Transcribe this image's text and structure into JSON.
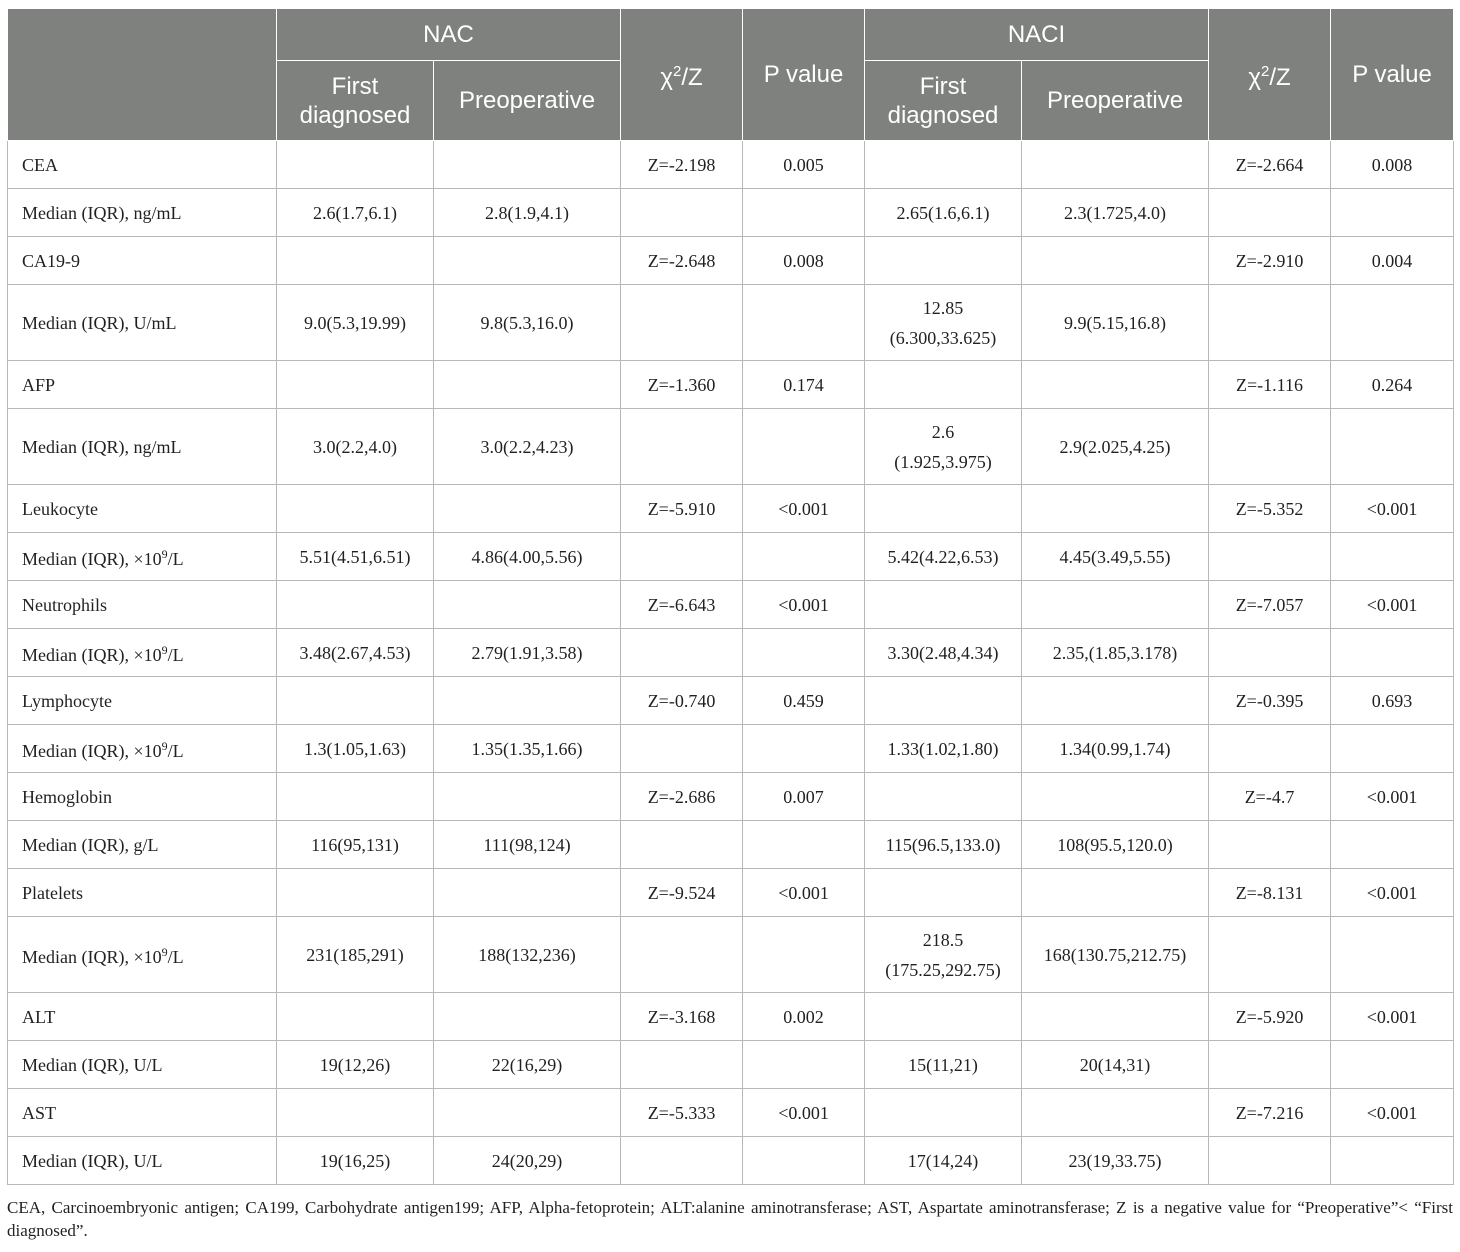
{
  "header": {
    "nac": "NAC",
    "naci": "NACI",
    "first_diagnosed_line1": "First",
    "first_diagnosed_line2": "diagnosed",
    "preoperative": "Preoperative",
    "stat_chi": "χ",
    "stat_sup": "2",
    "stat_z": "/Z",
    "p_value": "P value"
  },
  "rows": [
    {
      "label": "CEA",
      "nac_first": "",
      "nac_pre": "",
      "nac_stat": "Z=-2.198",
      "nac_p": "0.005",
      "naci_first": "",
      "naci_pre": "",
      "naci_stat": "Z=-2.664",
      "naci_p": "0.008"
    },
    {
      "label": "Median (IQR), ng/mL",
      "nac_first": "2.6(1.7,6.1)",
      "nac_pre": "2.8(1.9,4.1)",
      "nac_stat": "",
      "nac_p": "",
      "naci_first": "2.65(1.6,6.1)",
      "naci_pre": "2.3(1.725,4.0)",
      "naci_stat": "",
      "naci_p": ""
    },
    {
      "label": "CA19-9",
      "nac_first": "",
      "nac_pre": "",
      "nac_stat": "Z=-2.648",
      "nac_p": "0.008",
      "naci_first": "",
      "naci_pre": "",
      "naci_stat": "Z=-2.910",
      "naci_p": "0.004"
    },
    {
      "label": "Median (IQR), U/mL",
      "nac_first": "9.0(5.3,19.99)",
      "nac_pre": "9.8(5.3,16.0)",
      "nac_stat": "",
      "nac_p": "",
      "naci_first": "12.85",
      "naci_first_2": "(6.300,33.625)",
      "naci_pre": "9.9(5.15,16.8)",
      "naci_stat": "",
      "naci_p": ""
    },
    {
      "label": "AFP",
      "nac_first": "",
      "nac_pre": "",
      "nac_stat": "Z=-1.360",
      "nac_p": "0.174",
      "naci_first": "",
      "naci_pre": "",
      "naci_stat": "Z=-1.116",
      "naci_p": "0.264"
    },
    {
      "label": "Median (IQR), ng/mL",
      "nac_first": "3.0(2.2,4.0)",
      "nac_pre": "3.0(2.2,4.23)",
      "nac_stat": "",
      "nac_p": "",
      "naci_first": "2.6",
      "naci_first_2": "(1.925,3.975)",
      "naci_pre": "2.9(2.025,4.25)",
      "naci_stat": "",
      "naci_p": ""
    },
    {
      "label": "Leukocyte",
      "nac_first": "",
      "nac_pre": "",
      "nac_stat": "Z=-5.910",
      "nac_p": "<0.001",
      "naci_first": "",
      "naci_pre": "",
      "naci_stat": "Z=-5.352",
      "naci_p": "<0.001"
    },
    {
      "label": "Median (IQR), ×10",
      "label_sup": "9",
      "label_after": "/L",
      "nac_first": "5.51(4.51,6.51)",
      "nac_pre": "4.86(4.00,5.56)",
      "nac_stat": "",
      "nac_p": "",
      "naci_first": "5.42(4.22,6.53)",
      "naci_pre": "4.45(3.49,5.55)",
      "naci_stat": "",
      "naci_p": ""
    },
    {
      "label": "Neutrophils",
      "nac_first": "",
      "nac_pre": "",
      "nac_stat": "Z=-6.643",
      "nac_p": "<0.001",
      "naci_first": "",
      "naci_pre": "",
      "naci_stat": "Z=-7.057",
      "naci_p": "<0.001"
    },
    {
      "label": "Median (IQR), ×10",
      "label_sup": "9",
      "label_after": "/L",
      "nac_first": "3.48(2.67,4.53)",
      "nac_pre": "2.79(1.91,3.58)",
      "nac_stat": "",
      "nac_p": "",
      "naci_first": "3.30(2.48,4.34)",
      "naci_pre": "2.35,(1.85,3.178)",
      "naci_stat": "",
      "naci_p": ""
    },
    {
      "label": "Lymphocyte",
      "nac_first": "",
      "nac_pre": "",
      "nac_stat": "Z=-0.740",
      "nac_p": "0.459",
      "naci_first": "",
      "naci_pre": "",
      "naci_stat": "Z=-0.395",
      "naci_p": "0.693"
    },
    {
      "label": "Median (IQR), ×10",
      "label_sup": "9",
      "label_after": "/L",
      "nac_first": "1.3(1.05,1.63)",
      "nac_pre": "1.35(1.35,1.66)",
      "nac_stat": "",
      "nac_p": "",
      "naci_first": "1.33(1.02,1.80)",
      "naci_pre": "1.34(0.99,1.74)",
      "naci_stat": "",
      "naci_p": ""
    },
    {
      "label": "Hemoglobin",
      "nac_first": "",
      "nac_pre": "",
      "nac_stat": "Z=-2.686",
      "nac_p": "0.007",
      "naci_first": "",
      "naci_pre": "",
      "naci_stat": "Z=-4.7",
      "naci_p": "<0.001"
    },
    {
      "label": "Median (IQR), g/L",
      "nac_first": "116(95,131)",
      "nac_pre": "111(98,124)",
      "nac_stat": "",
      "nac_p": "",
      "naci_first": "115(96.5,133.0)",
      "naci_pre": "108(95.5,120.0)",
      "naci_stat": "",
      "naci_p": ""
    },
    {
      "label": "Platelets",
      "nac_first": "",
      "nac_pre": "",
      "nac_stat": "Z=-9.524",
      "nac_p": "<0.001",
      "naci_first": "",
      "naci_pre": "",
      "naci_stat": "Z=-8.131",
      "naci_p": "<0.001"
    },
    {
      "label": "Median (IQR), ×10",
      "label_sup": "9",
      "label_after": "/L",
      "nac_first": "231(185,291)",
      "nac_pre": "188(132,236)",
      "nac_stat": "",
      "nac_p": "",
      "naci_first": "218.5",
      "naci_first_2": "(175.25,292.75)",
      "naci_pre": "168(130.75,212.75)",
      "naci_stat": "",
      "naci_p": ""
    },
    {
      "label": "ALT",
      "nac_first": "",
      "nac_pre": "",
      "nac_stat": "Z=-3.168",
      "nac_p": "0.002",
      "naci_first": "",
      "naci_pre": "",
      "naci_stat": "Z=-5.920",
      "naci_p": "<0.001"
    },
    {
      "label": "Median (IQR), U/L",
      "nac_first": "19(12,26)",
      "nac_pre": "22(16,29)",
      "nac_stat": "",
      "nac_p": "",
      "naci_first": "15(11,21)",
      "naci_pre": "20(14,31)",
      "naci_stat": "",
      "naci_p": ""
    },
    {
      "label": "AST",
      "nac_first": "",
      "nac_pre": "",
      "nac_stat": "Z=-5.333",
      "nac_p": "<0.001",
      "naci_first": "",
      "naci_pre": "",
      "naci_stat": "Z=-7.216",
      "naci_p": "<0.001"
    },
    {
      "label": "Median (IQR), U/L",
      "nac_first": "19(16,25)",
      "nac_pre": "24(20,29)",
      "nac_stat": "",
      "nac_p": "",
      "naci_first": "17(14,24)",
      "naci_pre": "23(19,33.75)",
      "naci_stat": "",
      "naci_p": ""
    }
  ],
  "footnote": "CEA, Carcinoembryonic antigen; CA199, Carbohydrate antigen199; AFP, Alpha-fetoprotein; ALT:alanine aminotransferase; AST, Aspartate aminotransferase; Z is a negative value for “Preoperative”< “First diagnosed”.",
  "colors": {
    "header_bg": "#7f817f",
    "header_text": "#ffffff",
    "grid": "#b8b8b8",
    "text": "#231f20"
  }
}
